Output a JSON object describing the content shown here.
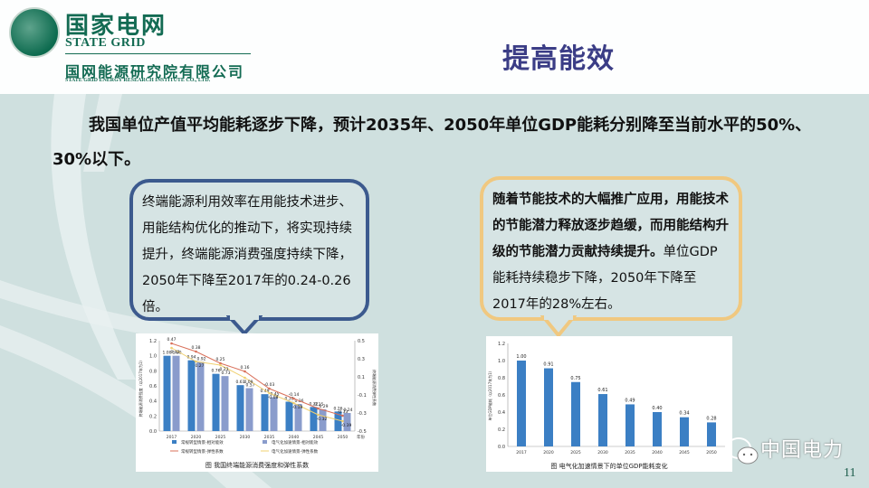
{
  "header": {
    "logo_cn": "国家电网",
    "logo_en": "STATE GRID",
    "org_cn": "国网能源研究院有限公司",
    "org_en": "STATE GRID ENERGY RESEARCH INSTITUTE CO., LTD.",
    "page_title": "提高能效"
  },
  "headline": "我国单位产值平均能耗逐步下降，预计2035年、2050年单位GDP能耗分别降至当前水平的50%、30%以下。",
  "callout_left": {
    "text": "终端能源利用效率在用能技术进步、用能结构优化的推动下，将实现持续提升，终端能源消费强度持续下降，2050年下降至2017年的0.24-0.26倍。"
  },
  "callout_right": {
    "bold_text": "随着节能技术的大幅推广应用，用能技术的节能潜力释放逐步趋缓，而用能结构升级的节能潜力贡献持续提升。",
    "normal_text": "单位GDP能耗持续稳步下降，2050年下降至2017年的28%左右。"
  },
  "footer": {
    "watermark": "中国电力",
    "page_number": "11"
  },
  "colors": {
    "title": "#3b3d86",
    "brand_green": "#136b53",
    "left_border": "#3c5a8e",
    "right_border": "#f0c880",
    "bar_blue": "#3b7fc4",
    "bar_purple": "#8a9ccc",
    "line_red": "#d9705a",
    "line_yellow": "#f0d070"
  },
  "chart_data": [
    {
      "type": "bar",
      "title": "图 我国终端能源消费强度和弹性系数",
      "categories": [
        "2017",
        "2020",
        "2025",
        "2030",
        "2035",
        "2040",
        "2045",
        "2050"
      ],
      "xlabel": "年份",
      "ylabel": "终端能源消费强度（以2017年为1）",
      "y2label": "终端能源消费弹性系数",
      "ylim": [
        0,
        1.2
      ],
      "yticks": [
        0.0,
        0.2,
        0.4,
        0.6,
        0.8,
        1.0,
        1.2
      ],
      "y2lim": [
        -0.5,
        0.5
      ],
      "y2ticks": [
        -0.5,
        -0.3,
        -0.1,
        0.1,
        0.3,
        0.5
      ],
      "series": [
        {
          "name": "常规转型情景-相对能效",
          "kind": "bar",
          "values": [
            1.0,
            0.94,
            0.76,
            0.61,
            0.49,
            0.39,
            0.32,
            0.26
          ]
        },
        {
          "name": "电气化加速情景-相对能效",
          "kind": "bar",
          "values": [
            1.0,
            0.92,
            0.73,
            0.57,
            0.45,
            0.36,
            0.29,
            0.24
          ]
        },
        {
          "name": "常规转型情景-弹性系数",
          "kind": "line",
          "axis": "y2",
          "values": [
            0.47,
            0.38,
            0.25,
            0.16,
            -0.03,
            -0.14,
            -0.25,
            -0.33
          ]
        },
        {
          "name": "电气化加速情景-弹性系数",
          "kind": "line",
          "axis": "y2",
          "values": [
            0.42,
            0.27,
            0.23,
            0.09,
            -0.08,
            -0.19,
            -0.32,
            -0.39
          ]
        }
      ],
      "legend_position": "bottom"
    },
    {
      "type": "bar",
      "title": "图 电气化加速情景下的单位GDP能耗变化",
      "categories": [
        "2017",
        "2020",
        "2025",
        "2030",
        "2035",
        "2040",
        "2045",
        "2050"
      ],
      "xlabel": "",
      "ylabel": "单位GDP能耗（以2017年为1）",
      "ylim": [
        0,
        1.2
      ],
      "yticks": [
        0.0,
        0.2,
        0.4,
        0.6,
        0.8,
        1.0,
        1.2
      ],
      "values": [
        1.0,
        0.91,
        0.75,
        0.61,
        0.49,
        0.4,
        0.34,
        0.28
      ]
    }
  ]
}
